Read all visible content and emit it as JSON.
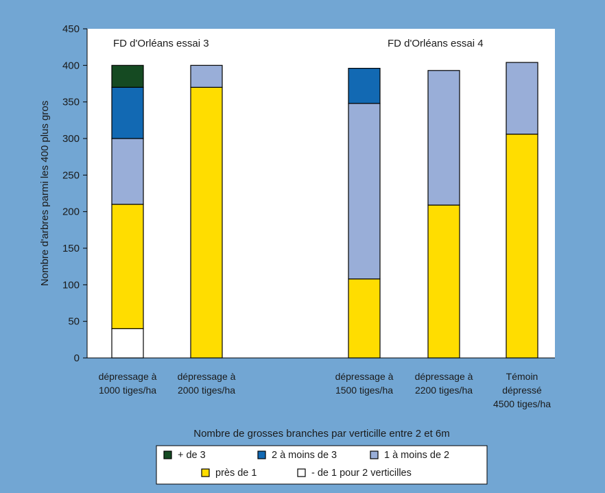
{
  "chart_data": {
    "type": "bar",
    "stacked": true,
    "ylabel": "Nombre d'arbres parmi les 400 plus gros",
    "xlabel": "Nombre de grosses branches par verticille entre 2 et 6m",
    "ylim": [
      0,
      450
    ],
    "yticks": [
      "0",
      "50",
      "100",
      "150",
      "200",
      "250",
      "300",
      "350",
      "400",
      "450"
    ],
    "groups": [
      {
        "title": "FD d'Orléans essai 3"
      },
      {
        "title": "FD d'Orléans essai 4"
      }
    ],
    "categories": [
      [
        "dépressage à",
        "1000 tiges/ha"
      ],
      [
        "dépressage à",
        "2000 tiges/ha"
      ],
      [
        "dépressage à",
        "1500 tiges/ha"
      ],
      [
        "dépressage à",
        "2200 tiges/ha"
      ],
      [
        "Témoin",
        "dépressé",
        "4500 tiges/ha"
      ]
    ],
    "series": [
      {
        "name": "- de 1 pour 2 verticilles",
        "color": "#ffffff",
        "values": [
          40,
          0,
          0,
          0,
          0
        ]
      },
      {
        "name": "près de 1",
        "color": "#ffdd00",
        "values": [
          170,
          370,
          108,
          209,
          306
        ]
      },
      {
        "name": "1 à moins de 2",
        "color": "#99aed8",
        "values": [
          90,
          30,
          240,
          184,
          98
        ]
      },
      {
        "name": "2 à moins de 3",
        "color": "#1269b3",
        "values": [
          70,
          0,
          48,
          0,
          0
        ]
      },
      {
        "name": "+ de 3",
        "color": "#154a22",
        "values": [
          30,
          0,
          0,
          0,
          0
        ]
      }
    ],
    "legend": {
      "placement": "bottom",
      "rows": [
        [
          "+ de 3",
          "2 à moins de 3",
          "1 à moins de 2"
        ],
        [
          "près de 1",
          "- de 1 pour 2 verticilles"
        ]
      ]
    },
    "grid": false
  }
}
